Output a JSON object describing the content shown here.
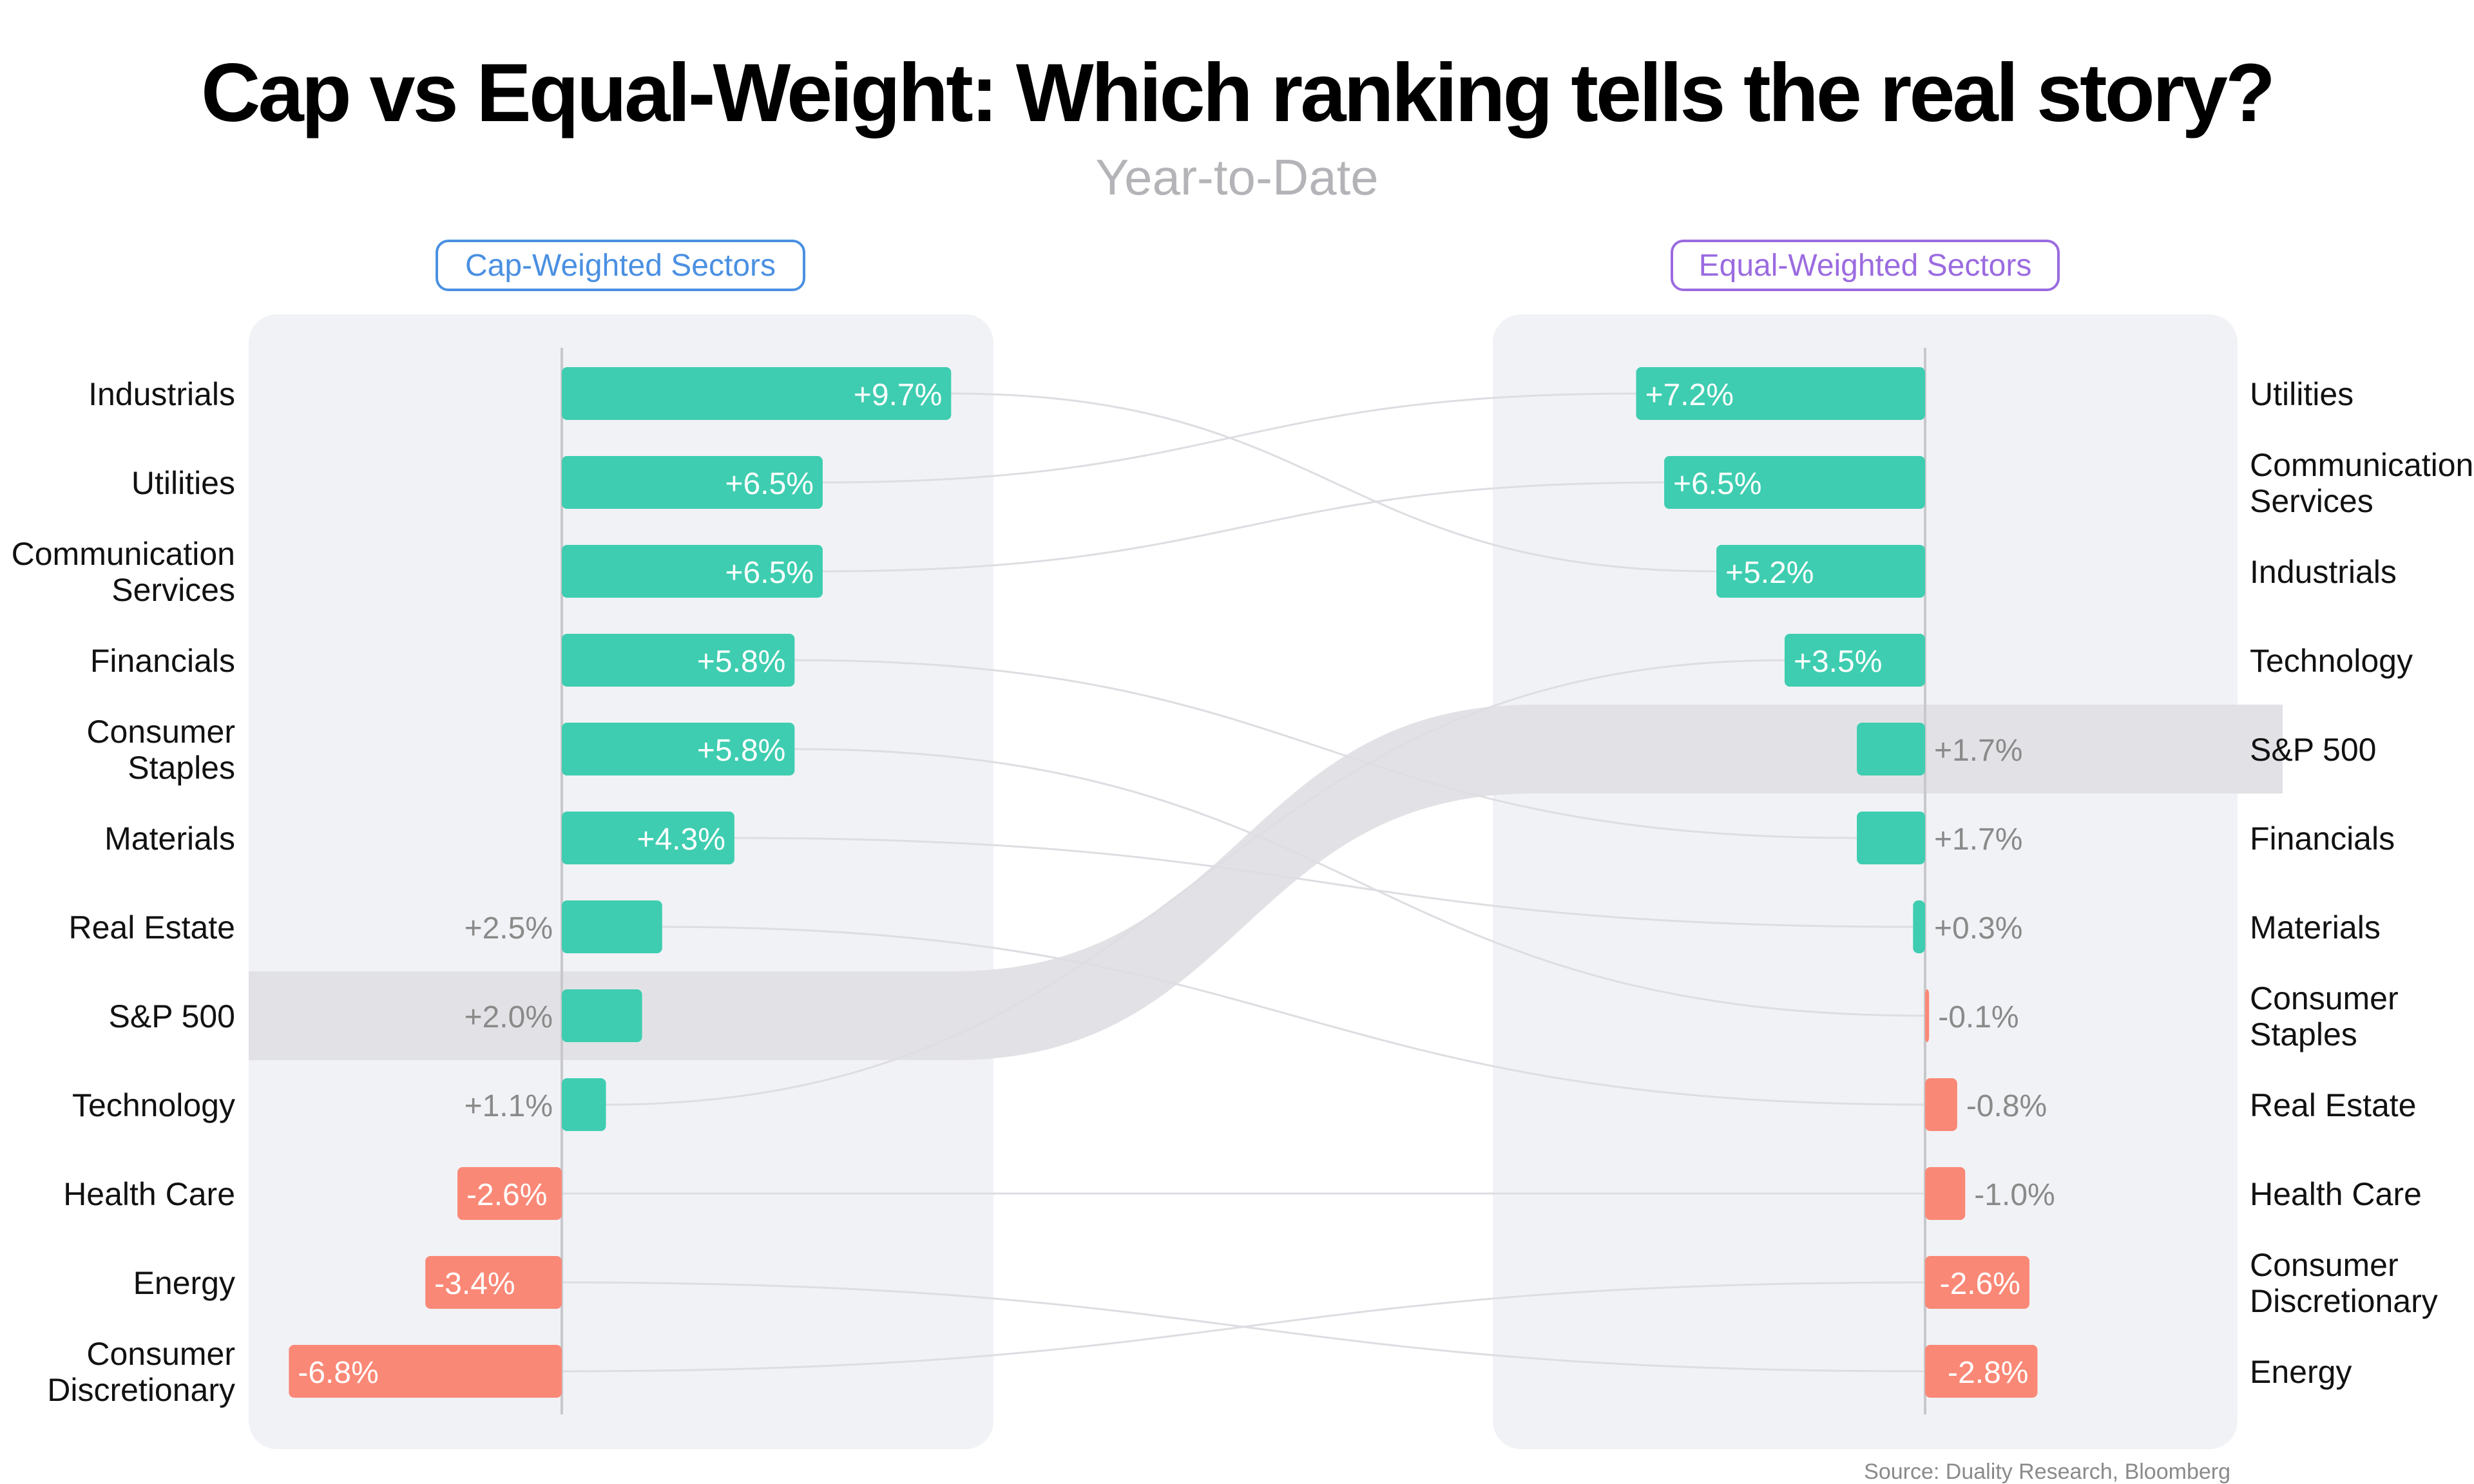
{
  "chart_data": {
    "type": "bar",
    "title": "Cap vs Equal-Weight: Which ranking tells the real story?",
    "subtitle": "Year-to-Date",
    "source": "Source: Duality Research, Bloomberg",
    "colors": {
      "positive": "#3ECDB0",
      "negative": "#FA8876",
      "highlight": "#E2E2E6",
      "panel": "#F1F2F6",
      "cap_accent": "#4A90E2",
      "equal_accent": "#9B6BE0",
      "label_inside": "#FFFFFF",
      "label_outside": "#8A8A8A",
      "connector": "#DDDDE2"
    },
    "panels": [
      {
        "title": "Cap-Weighted Sectors",
        "side": "left",
        "series": [
          {
            "name": "Industrials",
            "label_lines": [
              "Industrials"
            ],
            "value": 9.7,
            "label": "+9.7%"
          },
          {
            "name": "Utilities",
            "label_lines": [
              "Utilities"
            ],
            "value": 6.5,
            "label": "+6.5%"
          },
          {
            "name": "Communication Services",
            "label_lines": [
              "Communication",
              "Services"
            ],
            "value": 6.5,
            "label": "+6.5%"
          },
          {
            "name": "Financials",
            "label_lines": [
              "Financials"
            ],
            "value": 5.8,
            "label": "+5.8%"
          },
          {
            "name": "Consumer Staples",
            "label_lines": [
              "Consumer",
              "Staples"
            ],
            "value": 5.8,
            "label": "+5.8%"
          },
          {
            "name": "Materials",
            "label_lines": [
              "Materials"
            ],
            "value": 4.3,
            "label": "+4.3%"
          },
          {
            "name": "Real Estate",
            "label_lines": [
              "Real Estate"
            ],
            "value": 2.5,
            "label": "+2.5%"
          },
          {
            "name": "S&P 500",
            "label_lines": [
              "S&P 500"
            ],
            "value": 2.0,
            "label": "+2.0%",
            "highlight": true
          },
          {
            "name": "Technology",
            "label_lines": [
              "Technology"
            ],
            "value": 1.1,
            "label": "+1.1%"
          },
          {
            "name": "Health Care",
            "label_lines": [
              "Health Care"
            ],
            "value": -2.6,
            "label": "-2.6%"
          },
          {
            "name": "Energy",
            "label_lines": [
              "Energy"
            ],
            "value": -3.4,
            "label": "-3.4%"
          },
          {
            "name": "Consumer Discretionary",
            "label_lines": [
              "Consumer",
              "Discretionary"
            ],
            "value": -6.8,
            "label": "-6.8%"
          }
        ]
      },
      {
        "title": "Equal-Weighted Sectors",
        "side": "right",
        "series": [
          {
            "name": "Utilities",
            "label_lines": [
              "Utilities"
            ],
            "value": 7.2,
            "label": "+7.2%"
          },
          {
            "name": "Communication Services",
            "label_lines": [
              "Communication",
              "Services"
            ],
            "value": 6.5,
            "label": "+6.5%"
          },
          {
            "name": "Industrials",
            "label_lines": [
              "Industrials"
            ],
            "value": 5.2,
            "label": "+5.2%"
          },
          {
            "name": "Technology",
            "label_lines": [
              "Technology"
            ],
            "value": 3.5,
            "label": "+3.5%"
          },
          {
            "name": "S&P 500",
            "label_lines": [
              "S&P 500"
            ],
            "value": 1.7,
            "label": "+1.7%",
            "highlight": true
          },
          {
            "name": "Financials",
            "label_lines": [
              "Financials"
            ],
            "value": 1.7,
            "label": "+1.7%"
          },
          {
            "name": "Materials",
            "label_lines": [
              "Materials"
            ],
            "value": 0.3,
            "label": "+0.3%"
          },
          {
            "name": "Consumer Staples",
            "label_lines": [
              "Consumer",
              "Staples"
            ],
            "value": -0.1,
            "label": "-0.1%"
          },
          {
            "name": "Real Estate",
            "label_lines": [
              "Real Estate"
            ],
            "value": -0.8,
            "label": "-0.8%"
          },
          {
            "name": "Health Care",
            "label_lines": [
              "Health Care"
            ],
            "value": -1.0,
            "label": "-1.0%"
          },
          {
            "name": "Consumer Discretionary",
            "label_lines": [
              "Consumer",
              "Discretionary"
            ],
            "value": -2.6,
            "label": "-2.6%"
          },
          {
            "name": "Energy",
            "label_lines": [
              "Energy"
            ],
            "value": -2.8,
            "label": "-2.8%"
          }
        ]
      }
    ]
  }
}
